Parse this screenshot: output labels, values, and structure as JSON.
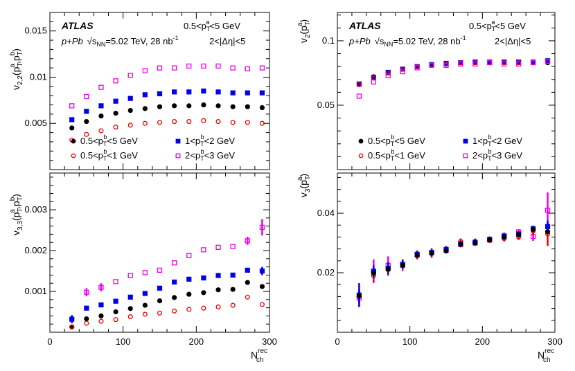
{
  "chart_data": [
    {
      "type": "scatter",
      "id": "v22",
      "ylabel_main": "v",
      "ylabel_sub": "2,2",
      "ylabel_tail": "(p",
      "xlim": [
        0,
        300
      ],
      "ylim": [
        0,
        0.017
      ],
      "yticks": [
        0.005,
        0.01,
        0.015
      ],
      "ytick_labels": [
        "0.005",
        "0.01",
        "0.015"
      ],
      "show_xticklabels": false,
      "annotations": {
        "brand": "ATLAS",
        "system": "p+Pb",
        "energy": "=5.02 TeV, 28 nb",
        "lumi_exp": "-1",
        "pta": "0.5<p_T^a<5 GeV",
        "deta": "2<|Δη|<5"
      },
      "series": [
        {
          "name": "0.5<pTb<5 GeV",
          "marker": "filled-circle",
          "color": "#000000",
          "x": [
            30,
            50,
            70,
            90,
            110,
            130,
            150,
            170,
            190,
            210,
            230,
            250,
            270,
            290
          ],
          "y": [
            0.0045,
            0.0052,
            0.0058,
            0.0061,
            0.0064,
            0.0066,
            0.0068,
            0.0069,
            0.0069,
            0.007,
            0.0069,
            0.0068,
            0.0068,
            0.0067
          ]
        },
        {
          "name": "1<pTb<2 GeV",
          "marker": "filled-square",
          "color": "#0000ee",
          "x": [
            30,
            50,
            70,
            90,
            110,
            130,
            150,
            170,
            190,
            210,
            230,
            250,
            270,
            290
          ],
          "y": [
            0.0054,
            0.0063,
            0.0069,
            0.0074,
            0.0077,
            0.0081,
            0.0082,
            0.0084,
            0.0084,
            0.0085,
            0.0084,
            0.0083,
            0.0083,
            0.0083
          ]
        },
        {
          "name": "0.5<pTb<1 GeV",
          "marker": "open-circle",
          "color": "#ee0000",
          "x": [
            30,
            50,
            70,
            90,
            110,
            130,
            150,
            170,
            190,
            210,
            230,
            250,
            270,
            290
          ],
          "y": [
            0.0032,
            0.0038,
            0.0042,
            0.0046,
            0.0048,
            0.005,
            0.0051,
            0.0052,
            0.0052,
            0.0053,
            0.0052,
            0.0051,
            0.0051,
            0.005
          ]
        },
        {
          "name": "2<pTb<3 GeV",
          "marker": "open-square",
          "color": "#ee00ee",
          "x": [
            30,
            50,
            70,
            90,
            110,
            130,
            150,
            170,
            190,
            210,
            230,
            250,
            270,
            290
          ],
          "y": [
            0.0069,
            0.0079,
            0.0089,
            0.0096,
            0.0102,
            0.0107,
            0.011,
            0.011,
            0.0112,
            0.0112,
            0.0112,
            0.011,
            0.0109,
            0.011
          ]
        }
      ],
      "legend": [
        {
          "label": "0.5<p_T^b<5 GeV",
          "marker": "filled-circle",
          "color": "#000000"
        },
        {
          "label": "1<p_T^b<2 GeV",
          "marker": "filled-square",
          "color": "#0000ee"
        },
        {
          "label": "0.5<p_T^b<1 GeV",
          "marker": "open-circle",
          "color": "#ee0000"
        },
        {
          "label": "2<p_T^b<3 GeV",
          "marker": "open-square",
          "color": "#ee00ee"
        }
      ]
    },
    {
      "type": "scatter",
      "id": "v2",
      "xlim": [
        0,
        300
      ],
      "ylim": [
        0,
        0.122
      ],
      "yticks": [
        0.05,
        0.1
      ],
      "ytick_labels": [
        "0.05",
        "0.1"
      ],
      "show_xticklabels": false,
      "annotations": {
        "brand": "ATLAS",
        "system": "p+Pb",
        "energy": "=5.02 TeV, 28 nb",
        "lumi_exp": "-1",
        "pta": "0.5<p_T^a<5 GeV",
        "deta": "2<|Δη|<5"
      },
      "series": [
        {
          "name": "0.5<pTb<5 GeV",
          "marker": "filled-circle",
          "color": "#000000",
          "x": [
            30,
            50,
            70,
            90,
            110,
            130,
            150,
            170,
            190,
            210,
            230,
            250,
            270,
            290
          ],
          "y": [
            0.066,
            0.072,
            0.075,
            0.078,
            0.08,
            0.081,
            0.082,
            0.083,
            0.083,
            0.083,
            0.083,
            0.083,
            0.083,
            0.083
          ]
        },
        {
          "name": "1<pTb<2 GeV",
          "marker": "filled-square",
          "color": "#0000ee",
          "x": [
            30,
            50,
            70,
            90,
            110,
            130,
            150,
            170,
            190,
            210,
            230,
            250,
            270,
            290
          ],
          "y": [
            0.0665,
            0.0715,
            0.0755,
            0.078,
            0.08,
            0.0815,
            0.0825,
            0.083,
            0.0835,
            0.0835,
            0.0835,
            0.0835,
            0.0835,
            0.0845
          ]
        },
        {
          "name": "0.5<pTb<1 GeV",
          "marker": "open-circle",
          "color": "#ee0000",
          "x": [
            30,
            50,
            70,
            90,
            110,
            130,
            150,
            170,
            190,
            210,
            230,
            250,
            270,
            290
          ],
          "y": [
            0.066,
            0.071,
            0.075,
            0.078,
            0.08,
            0.081,
            0.082,
            0.083,
            0.083,
            0.083,
            0.083,
            0.083,
            0.083,
            0.084
          ]
        },
        {
          "name": "2<pTb<3 GeV",
          "marker": "open-square",
          "color": "#ee00ee",
          "x": [
            30,
            50,
            70,
            90,
            110,
            130,
            150,
            170,
            190,
            210,
            230,
            250,
            270,
            290
          ],
          "y": [
            0.057,
            0.068,
            0.073,
            0.076,
            0.079,
            0.081,
            0.081,
            0.082,
            0.082,
            0.083,
            0.082,
            0.082,
            0.083,
            0.084
          ]
        }
      ],
      "legend": [
        {
          "label": "0.5<p_T^b<5 GeV",
          "marker": "filled-circle",
          "color": "#000000"
        },
        {
          "label": "1<p_T^b<2 GeV",
          "marker": "filled-square",
          "color": "#0000ee"
        },
        {
          "label": "0.5<p_T^b<1 GeV",
          "marker": "open-circle",
          "color": "#ee0000"
        },
        {
          "label": "2<p_T^b<3 GeV",
          "marker": "open-square",
          "color": "#ee00ee"
        }
      ]
    },
    {
      "type": "scatter",
      "id": "v33",
      "xlim": [
        0,
        300
      ],
      "ylim": [
        0,
        0.0039
      ],
      "yticks": [
        0.001,
        0.002,
        0.003
      ],
      "ytick_labels": [
        "0.001",
        "0.002",
        "0.003"
      ],
      "xticks": [
        0,
        100,
        200,
        300
      ],
      "xtick_labels": [
        "0",
        "100",
        "200",
        "300"
      ],
      "show_xticklabels": true,
      "series": [
        {
          "name": "0.5<pTb<5 GeV",
          "marker": "filled-circle",
          "color": "#000000",
          "x": [
            30,
            50,
            70,
            90,
            110,
            130,
            150,
            170,
            190,
            210,
            230,
            250,
            270,
            290
          ],
          "y": [
            0.00013,
            0.00033,
            0.0004,
            0.0005,
            0.00058,
            0.00066,
            0.00077,
            0.00085,
            0.00093,
            0.00097,
            0.00104,
            0.00105,
            0.00122,
            0.00112
          ],
          "err": [
            0,
            0,
            0,
            0,
            0,
            0,
            0,
            0,
            0,
            0,
            0,
            0,
            0,
            0
          ]
        },
        {
          "name": "1<pTb<2 GeV",
          "marker": "filled-square",
          "color": "#0000ee",
          "x": [
            30,
            50,
            70,
            90,
            110,
            130,
            150,
            170,
            190,
            210,
            230,
            250,
            270,
            290
          ],
          "y": [
            0.00032,
            0.00059,
            0.00067,
            0.00076,
            0.00086,
            0.00095,
            0.00108,
            0.00123,
            0.0013,
            0.00133,
            0.00139,
            0.0014,
            0.00152,
            0.0015
          ],
          "err": [
            0.0001,
            0,
            0,
            0,
            0,
            0,
            0,
            0,
            0,
            0,
            0,
            0,
            0,
            0.0001
          ]
        },
        {
          "name": "0.5<pTb<1 GeV",
          "marker": "open-circle",
          "color": "#ee0000",
          "x": [
            30,
            50,
            70,
            90,
            110,
            130,
            150,
            170,
            190,
            210,
            230,
            250,
            270,
            290
          ],
          "y": [
            0.00013,
            0.00022,
            0.00027,
            0.00031,
            0.00038,
            0.00044,
            0.00047,
            0.00052,
            0.00056,
            0.00059,
            0.00062,
            0.00066,
            0.00086,
            0.00068
          ],
          "err": [
            0,
            0,
            0,
            0,
            0,
            0,
            0,
            0,
            0,
            0,
            0,
            0,
            0,
            0
          ]
        },
        {
          "name": "2<pTb<3 GeV",
          "marker": "open-square",
          "color": "#ee00ee",
          "x": [
            50,
            70,
            90,
            110,
            130,
            150,
            170,
            190,
            210,
            230,
            250,
            270,
            290
          ],
          "y": [
            0.00098,
            0.0011,
            0.00124,
            0.00139,
            0.00146,
            0.00152,
            0.0017,
            0.00188,
            0.00202,
            0.00208,
            0.0021,
            0.00224,
            0.00257
          ],
          "err": [
            0.0001,
            0.0001,
            0,
            0,
            0,
            0,
            0,
            0,
            0,
            0,
            0,
            0.0001,
            0.0002
          ]
        }
      ]
    },
    {
      "type": "scatter",
      "id": "v3",
      "xlim": [
        0,
        300
      ],
      "ylim": [
        0,
        0.0535
      ],
      "yticks": [
        0.02,
        0.04
      ],
      "ytick_labels": [
        "0.02",
        "0.04"
      ],
      "xticks": [
        0,
        100,
        200,
        300
      ],
      "xtick_labels": [
        "0",
        "100",
        "200",
        "300"
      ],
      "show_xticklabels": true,
      "series": [
        {
          "name": "2<pTb<3 GeV",
          "marker": "open-square",
          "color": "#ee00ee",
          "x": [
            30,
            50,
            70,
            90,
            110,
            130,
            150,
            170,
            190,
            210,
            230,
            250,
            270,
            290
          ],
          "y": [
            0.0115,
            0.0205,
            0.0225,
            0.0225,
            0.026,
            0.0268,
            0.0275,
            0.0295,
            0.03,
            0.031,
            0.0325,
            0.0337,
            0.0322,
            0.041
          ],
          "err": [
            0.003,
            0.004,
            0.003,
            0.002,
            0.0015,
            0.0015,
            0.001,
            0.001,
            0.001,
            0.001,
            0.001,
            0.001,
            0.0015,
            0.006
          ]
        },
        {
          "name": "0.5<pTb<1 GeV",
          "marker": "open-circle",
          "color": "#ee0000",
          "x": [
            30,
            50,
            70,
            90,
            110,
            130,
            150,
            170,
            190,
            210,
            230,
            250,
            270,
            290
          ],
          "y": [
            0.012,
            0.019,
            0.021,
            0.023,
            0.026,
            0.0265,
            0.028,
            0.0305,
            0.0305,
            0.031,
            0.0315,
            0.032,
            0.034,
            0.033
          ],
          "err": [
            0.002,
            0.002,
            0.002,
            0.0015,
            0.0015,
            0.0015,
            0.001,
            0.001,
            0.001,
            0.001,
            0.001,
            0.001,
            0.0015,
            0.004
          ]
        },
        {
          "name": "1<pTb<2 GeV",
          "marker": "filled-square",
          "color": "#0000ee",
          "x": [
            30,
            50,
            70,
            90,
            110,
            130,
            150,
            170,
            190,
            210,
            230,
            250,
            270,
            290
          ],
          "y": [
            0.0125,
            0.0205,
            0.0215,
            0.0228,
            0.0262,
            0.0268,
            0.0278,
            0.0297,
            0.0302,
            0.0312,
            0.0322,
            0.033,
            0.0348,
            0.0355
          ],
          "err": [
            0.004,
            0.002,
            0.002,
            0.0015,
            0.001,
            0.001,
            0.001,
            0.001,
            0.001,
            0.001,
            0.001,
            0.001,
            0.001,
            0.002
          ]
        },
        {
          "name": "0.5<pTb<5 GeV",
          "marker": "filled-circle",
          "color": "#000000",
          "x": [
            30,
            50,
            70,
            90,
            110,
            130,
            150,
            170,
            190,
            210,
            230,
            250,
            270,
            290
          ],
          "y": [
            0.0122,
            0.0198,
            0.0213,
            0.0225,
            0.0258,
            0.0265,
            0.0273,
            0.0295,
            0.03,
            0.031,
            0.032,
            0.0328,
            0.0345,
            0.0338
          ],
          "err": [
            0,
            0,
            0,
            0,
            0,
            0,
            0,
            0,
            0,
            0,
            0,
            0,
            0,
            0
          ]
        }
      ]
    }
  ],
  "labels": {
    "y_tl_pre": "v",
    "y_tl_sub": "2,2",
    "y_tl_rest": "(p",
    "y_tl_a": "a",
    "y_tl_t": "T",
    "y_tl_mid": ",p",
    "y_tl_b": "b",
    "y_tl_close": ")",
    "y_tr_pre": "v",
    "y_tr_sub": "2",
    "y_tr_rest": "(p",
    "y_tr_a": "a",
    "y_tr_t": "T",
    "y_tr_close": ")",
    "y_bl_pre": "v",
    "y_bl_sub": "3,3",
    "y_bl_rest": "(p",
    "y_bl_a": "a",
    "y_bl_t": "T",
    "y_bl_mid": ",p",
    "y_bl_b": "b",
    "y_bl_close": ")",
    "y_br_pre": "v",
    "y_br_sub": "3",
    "y_br_rest": "(p",
    "y_br_a": "a",
    "y_br_t": "T",
    "y_br_close": ")",
    "x_main": "N",
    "x_sup": "rec",
    "x_sub": "ch"
  }
}
